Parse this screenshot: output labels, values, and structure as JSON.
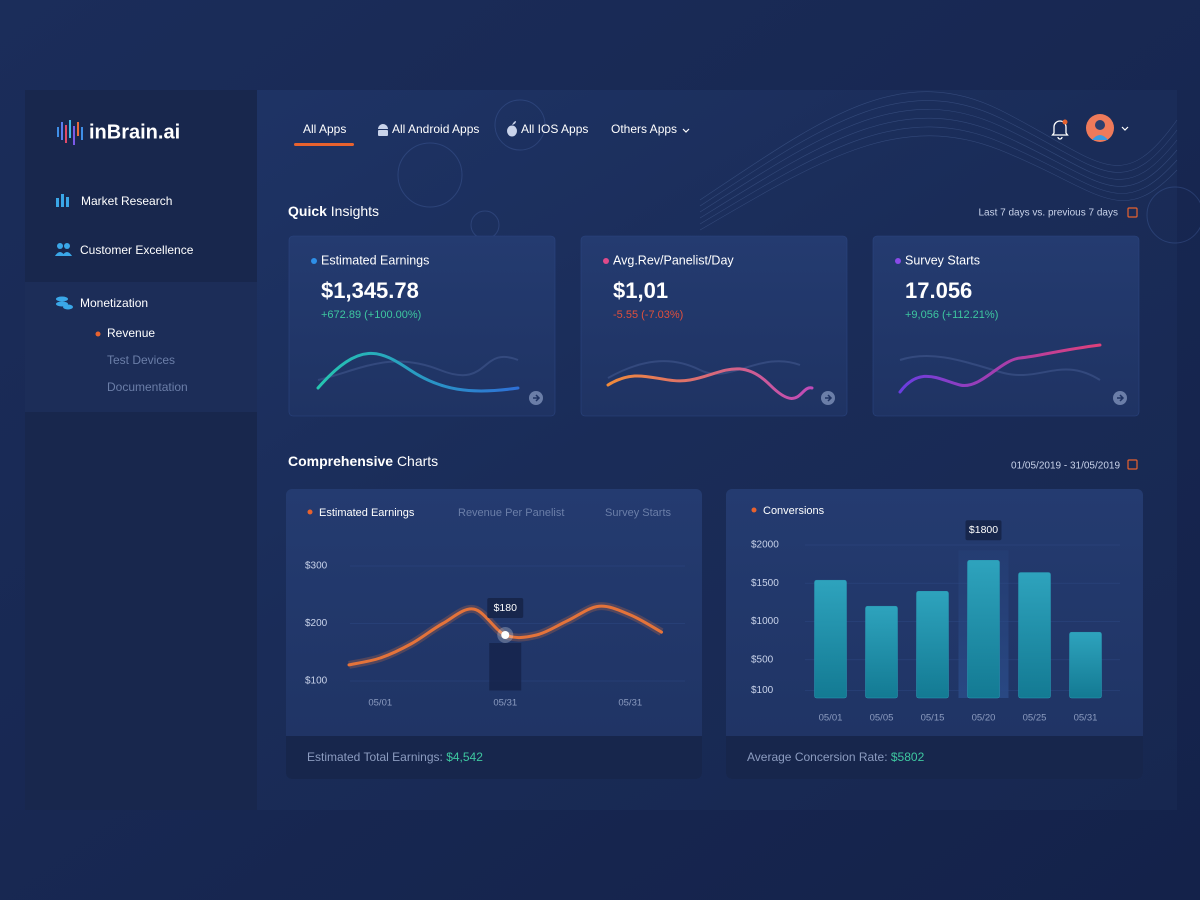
{
  "brand": "inBrain.ai",
  "sidebar": {
    "items": [
      {
        "label": "Market Research"
      },
      {
        "label": "Customer Excellence"
      },
      {
        "label": "Monetization",
        "children": [
          "Revenue",
          "Test Devices",
          "Documentation"
        ]
      }
    ]
  },
  "tabs": [
    "All Apps",
    "All Android Apps",
    "All IOS Apps",
    "Others Apps"
  ],
  "quick_insights": {
    "title_bold": "Quick",
    "title_rest": "Insights",
    "period": "Last 7 days vs. previous 7 days",
    "cards": [
      {
        "label": "Estimated Earnings",
        "value": "$1,345.78",
        "change": "+672.89 (+100.00%)"
      },
      {
        "label": "Avg.Rev/Panelist/Day",
        "value": "$1,01",
        "change": "-5.55 (-7.03%)"
      },
      {
        "label": "Survey Starts",
        "value": "17.056",
        "change": "+9,056 (+112.21%)"
      }
    ]
  },
  "comprehensive": {
    "title_bold": "Comprehensive",
    "title_rest": "Charts",
    "period": "01/05/2019 - 31/05/2019",
    "other_tabs": [
      "Revenue Per Panelist",
      "Survey Starts"
    ],
    "footers": [
      {
        "label": "Estimated Total Earnings:",
        "value": "$4,542"
      },
      {
        "label": "Average Concersion Rate:",
        "value": "$5802"
      }
    ]
  },
  "chart_data": [
    {
      "type": "line",
      "categories": [
        null,
        "05/01",
        null,
        null,
        null,
        "05/31",
        null,
        null,
        null,
        "05/31",
        null
      ],
      "series": [
        {
          "name": "Estimated Earnings",
          "color": "#e4733a",
          "values": [
            128,
            140,
            165,
            200,
            225,
            180,
            180,
            205,
            230,
            215,
            185
          ],
          "value_labels": [
            null,
            null,
            null,
            null,
            null,
            "$180",
            null,
            null,
            null,
            null,
            null
          ]
        }
      ],
      "ylim": [
        80,
        320
      ],
      "yticks": [
        {
          "value": 100,
          "label": "$100"
        },
        {
          "value": 200,
          "label": "$200"
        },
        {
          "value": 300,
          "label": "$300"
        }
      ],
      "grid": true
    },
    {
      "type": "bar",
      "categories": [
        "05/01",
        "05/05",
        "05/15",
        "05/20",
        "05/25",
        "05/31"
      ],
      "series": [
        {
          "name": "Conversions",
          "color": "#2a9bb5",
          "values": [
            1540,
            1200,
            1395,
            1800,
            1640,
            860
          ],
          "value_labels": [
            null,
            null,
            null,
            "$1800",
            null,
            null
          ]
        }
      ],
      "ylim": [
        0,
        2000
      ],
      "yticks": [
        {
          "value": 100,
          "label": "$100"
        },
        {
          "value": 500,
          "label": "$500"
        },
        {
          "value": 1000,
          "label": "$1000"
        },
        {
          "value": 1500,
          "label": "$1500"
        },
        {
          "value": 2000,
          "label": "$2000"
        }
      ],
      "grid": true
    }
  ]
}
